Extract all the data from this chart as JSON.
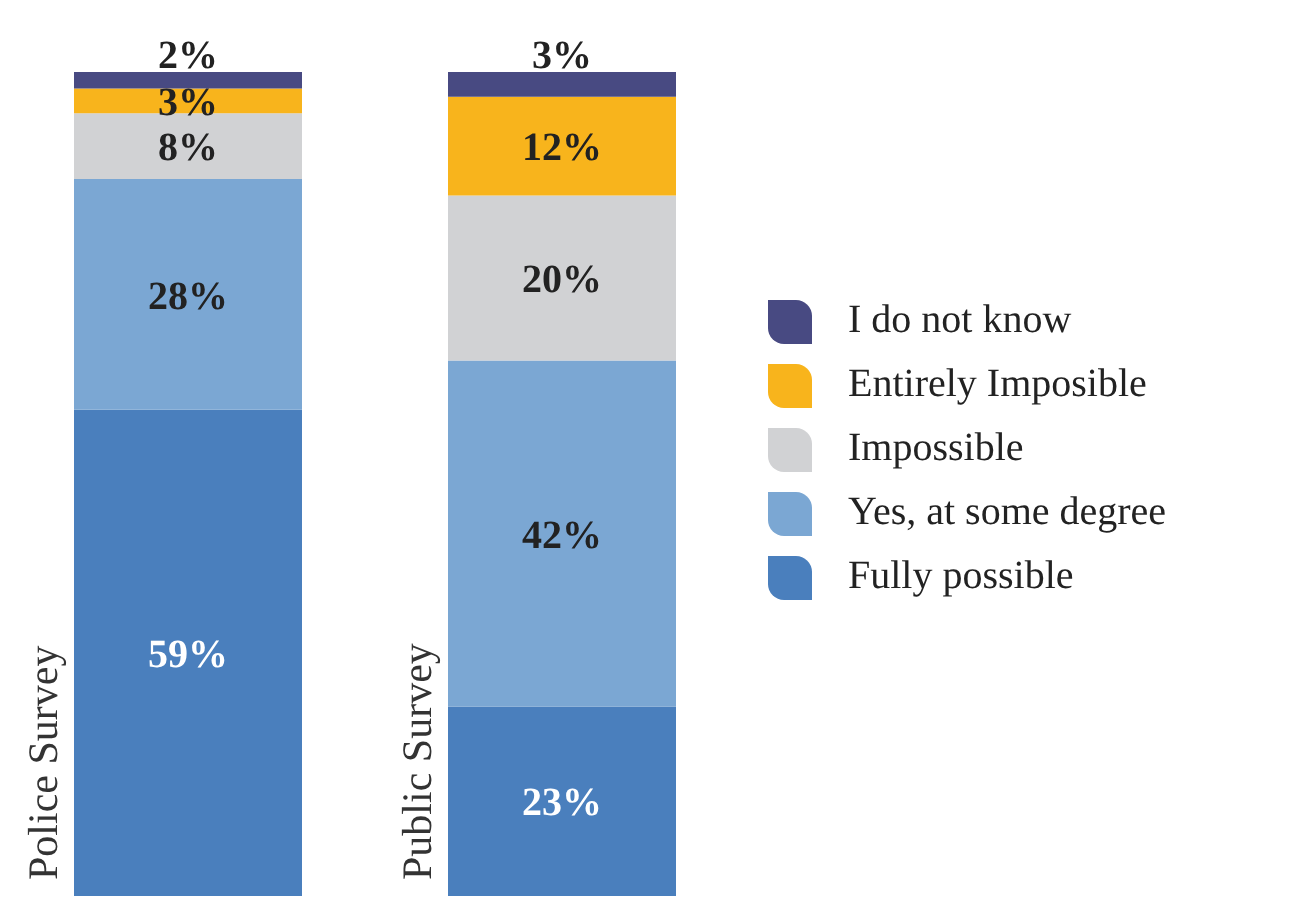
{
  "chart_data": {
    "type": "bar",
    "stacked": true,
    "categories": [
      "Police Survey",
      "Public Survey"
    ],
    "series": [
      {
        "name": "Fully possible",
        "color": "#4a7fbd",
        "values": [
          59,
          23
        ],
        "value_labels": [
          "59%",
          "23%"
        ]
      },
      {
        "name": "Yes, at some degree",
        "color": "#7ba7d3",
        "values": [
          28,
          42
        ],
        "value_labels": [
          "28%",
          "42%"
        ]
      },
      {
        "name": "Impossible",
        "color": "#d1d2d4",
        "values": [
          8,
          20
        ],
        "value_labels": [
          "8%",
          "20%"
        ]
      },
      {
        "name": "Entirely Imposible",
        "color": "#f8b41c",
        "values": [
          3,
          12
        ],
        "value_labels": [
          "3%",
          "12%"
        ]
      },
      {
        "name": "I do not know",
        "color": "#484a82",
        "values": [
          2,
          3
        ],
        "value_labels": [
          "2%",
          "3%"
        ]
      }
    ],
    "legend": "right",
    "grid": false
  }
}
